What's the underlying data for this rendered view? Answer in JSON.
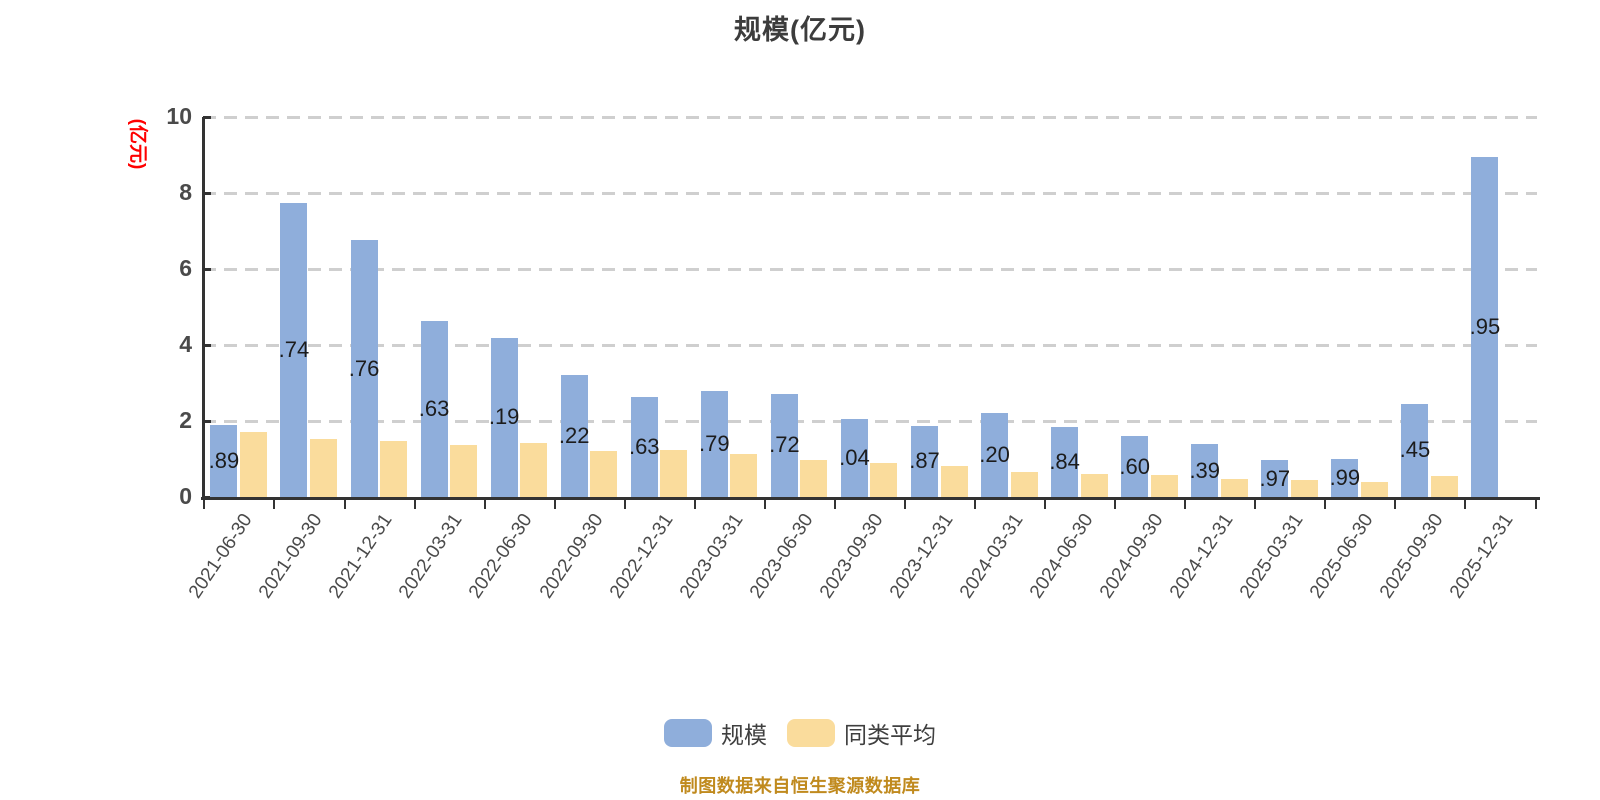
{
  "title": "规模(亿元)",
  "y_axis_name": "(亿元)",
  "source_note": "制图数据来自恒生聚源数据库",
  "colors": {
    "scale_bar": "#8FAEDB",
    "peer_bar": "#FADC9C",
    "axis_line": "#333333",
    "grid_line": "#CFCFCF",
    "tick_text": "#4A4A4A",
    "title_text": "#3C3C3C",
    "y_axis_name_text": "#FF0000",
    "bar_label_text": "#1C1C1C",
    "legend_text": "#3F3F3F",
    "source_note_text": "#C08A1E"
  },
  "chart_data": {
    "type": "bar",
    "title": "规模(亿元)",
    "xlabel": "",
    "ylabel": "(亿元)",
    "ylim": [
      0,
      10
    ],
    "y_ticks": [
      0,
      2,
      4,
      6,
      8,
      10
    ],
    "grid": "horizontal-dashed",
    "legend_position": "bottom",
    "categories": [
      "2021-06-30",
      "2021-09-30",
      "2021-12-31",
      "2022-03-31",
      "2022-06-30",
      "2022-09-30",
      "2022-12-31",
      "2023-03-31",
      "2023-06-30",
      "2023-09-30",
      "2023-12-31",
      "2024-03-31",
      "2024-06-30",
      "2024-09-30",
      "2024-12-31",
      "2025-03-31",
      "2025-06-30",
      "2025-09-30",
      "2025-12-31"
    ],
    "series": [
      {
        "name": "规模",
        "values": [
          1.89,
          7.74,
          6.76,
          4.63,
          4.19,
          3.22,
          2.63,
          2.79,
          2.72,
          2.04,
          1.87,
          2.2,
          1.84,
          1.6,
          1.39,
          0.97,
          0.99,
          2.45,
          8.95
        ],
        "bar_labels": [
          ".89",
          ".74",
          ".76",
          ".63",
          ".19",
          ".22",
          ".63",
          ".79",
          ".72",
          ".04",
          ".87",
          ".20",
          ".84",
          ".60",
          ".39",
          ".97",
          ".99",
          ".45",
          ".95"
        ]
      },
      {
        "name": "同类平均",
        "values": [
          1.7,
          1.52,
          1.47,
          1.37,
          1.42,
          1.22,
          1.24,
          1.12,
          0.97,
          0.89,
          0.81,
          0.65,
          0.6,
          0.57,
          0.48,
          0.44,
          0.4,
          0.55,
          0
        ]
      }
    ]
  }
}
